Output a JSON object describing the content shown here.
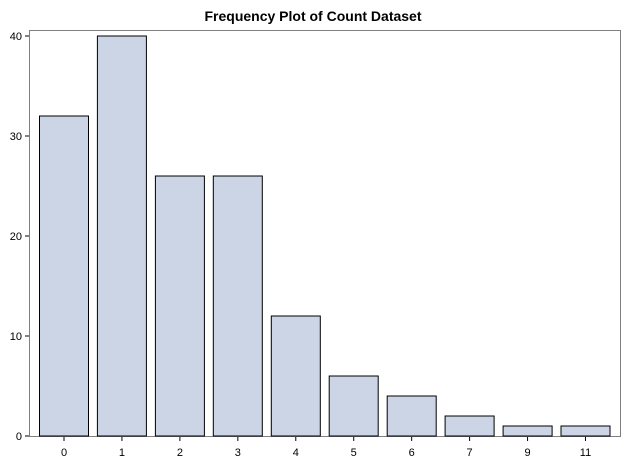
{
  "chart_data": {
    "type": "bar",
    "title": "Frequency Plot of Count Dataset",
    "xlabel": "",
    "ylabel": "",
    "categories": [
      "0",
      "1",
      "2",
      "3",
      "4",
      "5",
      "6",
      "7",
      "9",
      "11"
    ],
    "values": [
      32,
      40,
      26,
      26,
      12,
      6,
      4,
      2,
      1,
      1
    ],
    "ylim": [
      0,
      40
    ],
    "yticks": [
      0,
      10,
      20,
      30,
      40
    ],
    "grid": false,
    "bar_color": "#cbd5e5",
    "edge_color": "#000000"
  }
}
